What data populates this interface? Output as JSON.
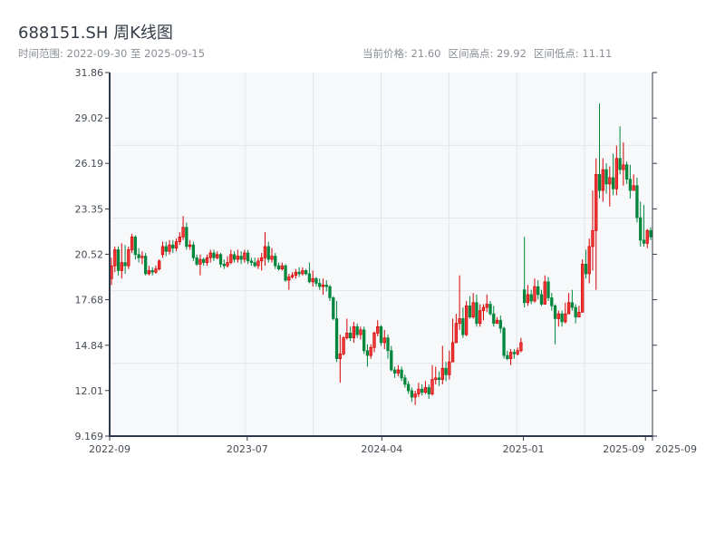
{
  "header": {
    "title": "688151.SH 周K线图",
    "range_label": "时间范围: 2022-09-30 至 2025-09-15",
    "current_price": "当前价格: 21.60",
    "period_high": "区间高点: 29.92",
    "period_low": "区间低点: 11.11"
  },
  "colors": {
    "up": "#d40000",
    "up_fill": "#f03a3a",
    "down": "#00873c",
    "grid": "#e3e5ea",
    "plot_bg": "#f6f8fa",
    "axis": "#2f3a4a"
  },
  "chart_data": {
    "type": "candlestick",
    "title": "688151.SH 周K线图",
    "xlabel": "",
    "ylabel": "",
    "start_date": "2022-09-30",
    "end_date": "2025-09-15",
    "ylim": [
      9.169,
      31.86
    ],
    "yticks": [
      "9.169",
      "12.01",
      "14.84",
      "17.68",
      "20.52",
      "23.35",
      "26.19",
      "29.02",
      "31.86"
    ],
    "xticks": [
      {
        "label": "2022-09",
        "date": "2022-09-30"
      },
      {
        "label": "2023-07",
        "date": "2023-07-01"
      },
      {
        "label": "2024-04",
        "date": "2024-03-25"
      },
      {
        "label": "2025-01",
        "date": "2025-01-01"
      },
      {
        "label": "2025-09",
        "date": "2025-09-01"
      },
      {
        "label": "2025-09",
        "date": "2025-09-15"
      }
    ],
    "grid": true,
    "candle_fields": [
      "open",
      "close",
      "high",
      "low"
    ],
    "candles": [
      [
        19.0,
        19.8,
        20.3,
        18.6
      ],
      [
        19.8,
        20.8,
        21.0,
        19.4
      ],
      [
        20.8,
        19.5,
        21.0,
        19.2
      ],
      [
        19.5,
        20.0,
        21.2,
        19.0
      ],
      [
        20.0,
        19.8,
        21.1,
        19.3
      ],
      [
        19.8,
        20.8,
        21.0,
        19.6
      ],
      [
        20.8,
        21.6,
        21.8,
        20.6
      ],
      [
        21.6,
        20.5,
        21.7,
        20.2
      ],
      [
        20.5,
        20.3,
        20.9,
        20.0
      ],
      [
        20.3,
        20.4,
        20.7,
        19.9
      ],
      [
        20.4,
        19.3,
        20.6,
        19.2
      ],
      [
        19.3,
        19.5,
        19.8,
        19.2
      ],
      [
        19.5,
        19.4,
        19.7,
        19.2
      ],
      [
        19.4,
        19.6,
        19.8,
        19.3
      ],
      [
        19.6,
        20.1,
        20.2,
        19.5
      ],
      [
        20.5,
        21.0,
        21.3,
        20.3
      ],
      [
        21.0,
        20.7,
        21.3,
        20.4
      ],
      [
        20.7,
        21.1,
        21.4,
        20.5
      ],
      [
        21.1,
        20.9,
        21.4,
        20.6
      ],
      [
        20.9,
        21.3,
        21.5,
        20.7
      ],
      [
        21.3,
        21.6,
        21.9,
        21.1
      ],
      [
        21.6,
        22.2,
        22.9,
        21.4
      ],
      [
        22.2,
        21.0,
        22.5,
        20.8
      ],
      [
        21.0,
        21.1,
        21.4,
        20.8
      ],
      [
        21.1,
        20.3,
        21.3,
        20.1
      ],
      [
        20.3,
        19.9,
        20.5,
        19.8
      ],
      [
        19.9,
        20.2,
        20.5,
        19.2
      ],
      [
        20.2,
        20.0,
        20.3,
        19.8
      ],
      [
        20.0,
        20.3,
        20.5,
        19.8
      ],
      [
        20.3,
        20.6,
        20.8,
        20.0
      ],
      [
        20.6,
        20.3,
        20.8,
        20.1
      ],
      [
        20.3,
        20.5,
        20.7,
        20.2
      ],
      [
        20.5,
        19.9,
        20.6,
        19.7
      ],
      [
        19.9,
        19.8,
        20.2,
        19.6
      ],
      [
        19.8,
        20.0,
        20.4,
        19.7
      ],
      [
        20.0,
        20.5,
        20.8,
        19.9
      ],
      [
        20.5,
        20.2,
        20.7,
        20.0
      ],
      [
        20.2,
        20.4,
        20.8,
        20.0
      ],
      [
        20.4,
        20.2,
        20.7,
        19.9
      ],
      [
        20.2,
        20.6,
        20.8,
        20.0
      ],
      [
        20.6,
        20.1,
        20.8,
        19.9
      ],
      [
        20.1,
        20.0,
        20.3,
        19.8
      ],
      [
        20.0,
        19.8,
        20.3,
        19.7
      ],
      [
        19.8,
        20.1,
        20.3,
        19.6
      ],
      [
        20.1,
        20.3,
        20.6,
        19.5
      ],
      [
        20.3,
        21.0,
        21.9,
        19.8
      ],
      [
        21.0,
        20.2,
        21.3,
        20.0
      ],
      [
        20.2,
        20.4,
        20.9,
        20.0
      ],
      [
        20.4,
        19.8,
        20.6,
        19.6
      ],
      [
        19.8,
        19.6,
        20.0,
        19.5
      ],
      [
        19.6,
        19.8,
        20.0,
        19.5
      ],
      [
        19.8,
        18.9,
        19.9,
        18.8
      ],
      [
        18.9,
        19.1,
        19.3,
        18.3
      ],
      [
        19.1,
        19.2,
        19.4,
        19.0
      ],
      [
        19.2,
        19.4,
        19.6,
        19.0
      ],
      [
        19.4,
        19.3,
        19.7,
        19.1
      ],
      [
        19.3,
        19.5,
        19.7,
        19.2
      ],
      [
        19.5,
        19.3,
        19.6,
        19.2
      ],
      [
        19.3,
        18.8,
        20.0,
        18.7
      ],
      [
        18.8,
        19.0,
        19.5,
        18.5
      ],
      [
        19.0,
        18.7,
        19.1,
        18.5
      ],
      [
        18.7,
        18.5,
        19.0,
        18.3
      ],
      [
        18.5,
        18.6,
        19.0,
        18.0
      ],
      [
        18.6,
        18.5,
        18.9,
        18.2
      ],
      [
        18.5,
        17.8,
        18.6,
        17.6
      ],
      [
        17.8,
        16.5,
        17.9,
        16.4
      ],
      [
        16.5,
        14.0,
        17.6,
        13.8
      ],
      [
        14.0,
        14.3,
        15.5,
        12.5
      ],
      [
        14.3,
        15.3,
        15.4,
        14.2
      ],
      [
        15.3,
        15.6,
        16.5,
        15.2
      ],
      [
        15.6,
        15.3,
        16.0,
        15.1
      ],
      [
        15.3,
        16.0,
        16.3,
        15.0
      ],
      [
        16.0,
        15.5,
        16.2,
        15.3
      ],
      [
        15.5,
        15.8,
        16.0,
        15.2
      ],
      [
        15.8,
        14.5,
        16.0,
        14.3
      ],
      [
        14.5,
        14.2,
        14.9,
        13.5
      ],
      [
        14.2,
        14.7,
        14.9,
        14.0
      ],
      [
        14.7,
        15.6,
        15.7,
        14.4
      ],
      [
        15.6,
        16.0,
        16.4,
        15.4
      ],
      [
        16.0,
        15.0,
        16.1,
        14.8
      ],
      [
        15.0,
        15.3,
        15.8,
        14.6
      ],
      [
        15.3,
        14.5,
        15.5,
        14.0
      ],
      [
        14.5,
        13.3,
        14.8,
        13.2
      ],
      [
        13.3,
        13.1,
        13.5,
        12.8
      ],
      [
        13.1,
        13.3,
        13.6,
        12.9
      ],
      [
        13.3,
        12.8,
        13.5,
        12.6
      ],
      [
        12.8,
        12.4,
        13.0,
        12.2
      ],
      [
        12.4,
        12.0,
        12.6,
        11.8
      ],
      [
        12.0,
        11.6,
        12.2,
        11.3
      ],
      [
        11.6,
        11.8,
        12.0,
        11.11
      ],
      [
        11.8,
        12.1,
        12.5,
        11.6
      ],
      [
        12.1,
        11.9,
        12.4,
        11.7
      ],
      [
        11.9,
        12.2,
        12.6,
        11.8
      ],
      [
        12.2,
        11.8,
        12.4,
        11.5
      ],
      [
        11.8,
        12.7,
        13.6,
        11.7
      ],
      [
        12.7,
        12.8,
        13.5,
        12.4
      ],
      [
        12.8,
        12.7,
        13.2,
        12.3
      ],
      [
        12.7,
        13.4,
        14.8,
        12.4
      ],
      [
        13.4,
        13.0,
        13.8,
        12.6
      ],
      [
        13.0,
        13.8,
        14.5,
        12.7
      ],
      [
        13.8,
        15.0,
        16.5,
        14.8
      ],
      [
        15.0,
        16.2,
        16.8,
        15.3
      ],
      [
        16.2,
        16.5,
        19.2,
        15.8
      ],
      [
        16.5,
        15.5,
        17.2,
        15.3
      ],
      [
        15.5,
        17.3,
        17.6,
        15.4
      ],
      [
        17.3,
        16.6,
        17.9,
        16.5
      ],
      [
        16.6,
        17.5,
        18.1,
        16.5
      ],
      [
        17.5,
        16.2,
        18.0,
        16.0
      ],
      [
        16.2,
        17.0,
        17.4,
        16.0
      ],
      [
        17.0,
        17.2,
        17.4,
        16.4
      ],
      [
        17.2,
        17.4,
        18.0,
        16.9
      ],
      [
        17.4,
        16.8,
        17.6,
        16.7
      ],
      [
        16.8,
        16.2,
        17.3,
        16.0
      ],
      [
        16.2,
        16.4,
        16.6,
        16.2
      ],
      [
        16.4,
        15.9,
        16.7,
        15.6
      ],
      [
        15.9,
        14.2,
        16.0,
        14.0
      ],
      [
        14.2,
        14.0,
        14.5,
        13.9
      ],
      [
        14.0,
        14.4,
        14.6,
        13.6
      ],
      [
        14.4,
        14.3,
        14.6,
        14.0
      ],
      [
        14.3,
        14.5,
        14.7,
        14.2
      ],
      [
        14.5,
        15.0,
        15.3,
        14.4
      ],
      [
        18.3,
        17.5,
        21.6,
        17.2
      ],
      [
        17.5,
        18.0,
        18.6,
        17.3
      ],
      [
        18.0,
        17.6,
        18.3,
        17.4
      ],
      [
        17.6,
        18.5,
        19.0,
        17.5
      ],
      [
        18.5,
        18.0,
        18.9,
        17.7
      ],
      [
        18.0,
        17.4,
        18.3,
        17.3
      ],
      [
        17.4,
        18.8,
        19.2,
        17.6
      ],
      [
        18.8,
        17.8,
        19.1,
        17.6
      ],
      [
        17.8,
        17.3,
        18.1,
        17.0
      ],
      [
        17.3,
        16.5,
        17.4,
        14.9
      ],
      [
        16.5,
        16.8,
        17.0,
        16.0
      ],
      [
        16.8,
        16.3,
        17.0,
        16.0
      ],
      [
        16.3,
        16.8,
        17.5,
        16.2
      ],
      [
        16.8,
        17.5,
        18.1,
        16.9
      ],
      [
        17.5,
        17.2,
        18.3,
        17.0
      ],
      [
        17.2,
        16.6,
        17.4,
        16.2
      ],
      [
        16.6,
        16.9,
        17.3,
        16.6
      ],
      [
        16.9,
        19.9,
        20.2,
        16.9
      ],
      [
        19.9,
        19.3,
        20.8,
        19.0
      ],
      [
        19.3,
        21.0,
        21.5,
        18.7
      ],
      [
        21.0,
        22.0,
        24.5,
        19.5
      ],
      [
        22.0,
        25.5,
        26.5,
        18.3
      ],
      [
        25.5,
        24.5,
        29.92,
        24.0
      ],
      [
        24.5,
        25.8,
        26.5,
        23.8
      ],
      [
        25.8,
        24.9,
        26.2,
        24.3
      ],
      [
        24.9,
        25.3,
        26.0,
        23.5
      ],
      [
        25.3,
        24.6,
        26.8,
        24.2
      ],
      [
        24.6,
        26.5,
        27.3,
        24.2
      ],
      [
        26.5,
        25.8,
        28.5,
        25.5
      ],
      [
        25.8,
        26.1,
        27.5,
        24.8
      ],
      [
        26.1,
        25.2,
        26.3,
        24.9
      ],
      [
        25.2,
        24.5,
        26.1,
        24.0
      ],
      [
        24.5,
        24.8,
        25.5,
        24.5
      ],
      [
        24.8,
        22.8,
        25.3,
        22.5
      ],
      [
        22.8,
        21.4,
        23.8,
        21.0
      ],
      [
        21.4,
        21.2,
        23.6,
        21.0
      ],
      [
        21.2,
        22.0,
        22.1,
        20.9
      ],
      [
        22.0,
        21.6,
        22.2,
        21.4
      ]
    ]
  }
}
